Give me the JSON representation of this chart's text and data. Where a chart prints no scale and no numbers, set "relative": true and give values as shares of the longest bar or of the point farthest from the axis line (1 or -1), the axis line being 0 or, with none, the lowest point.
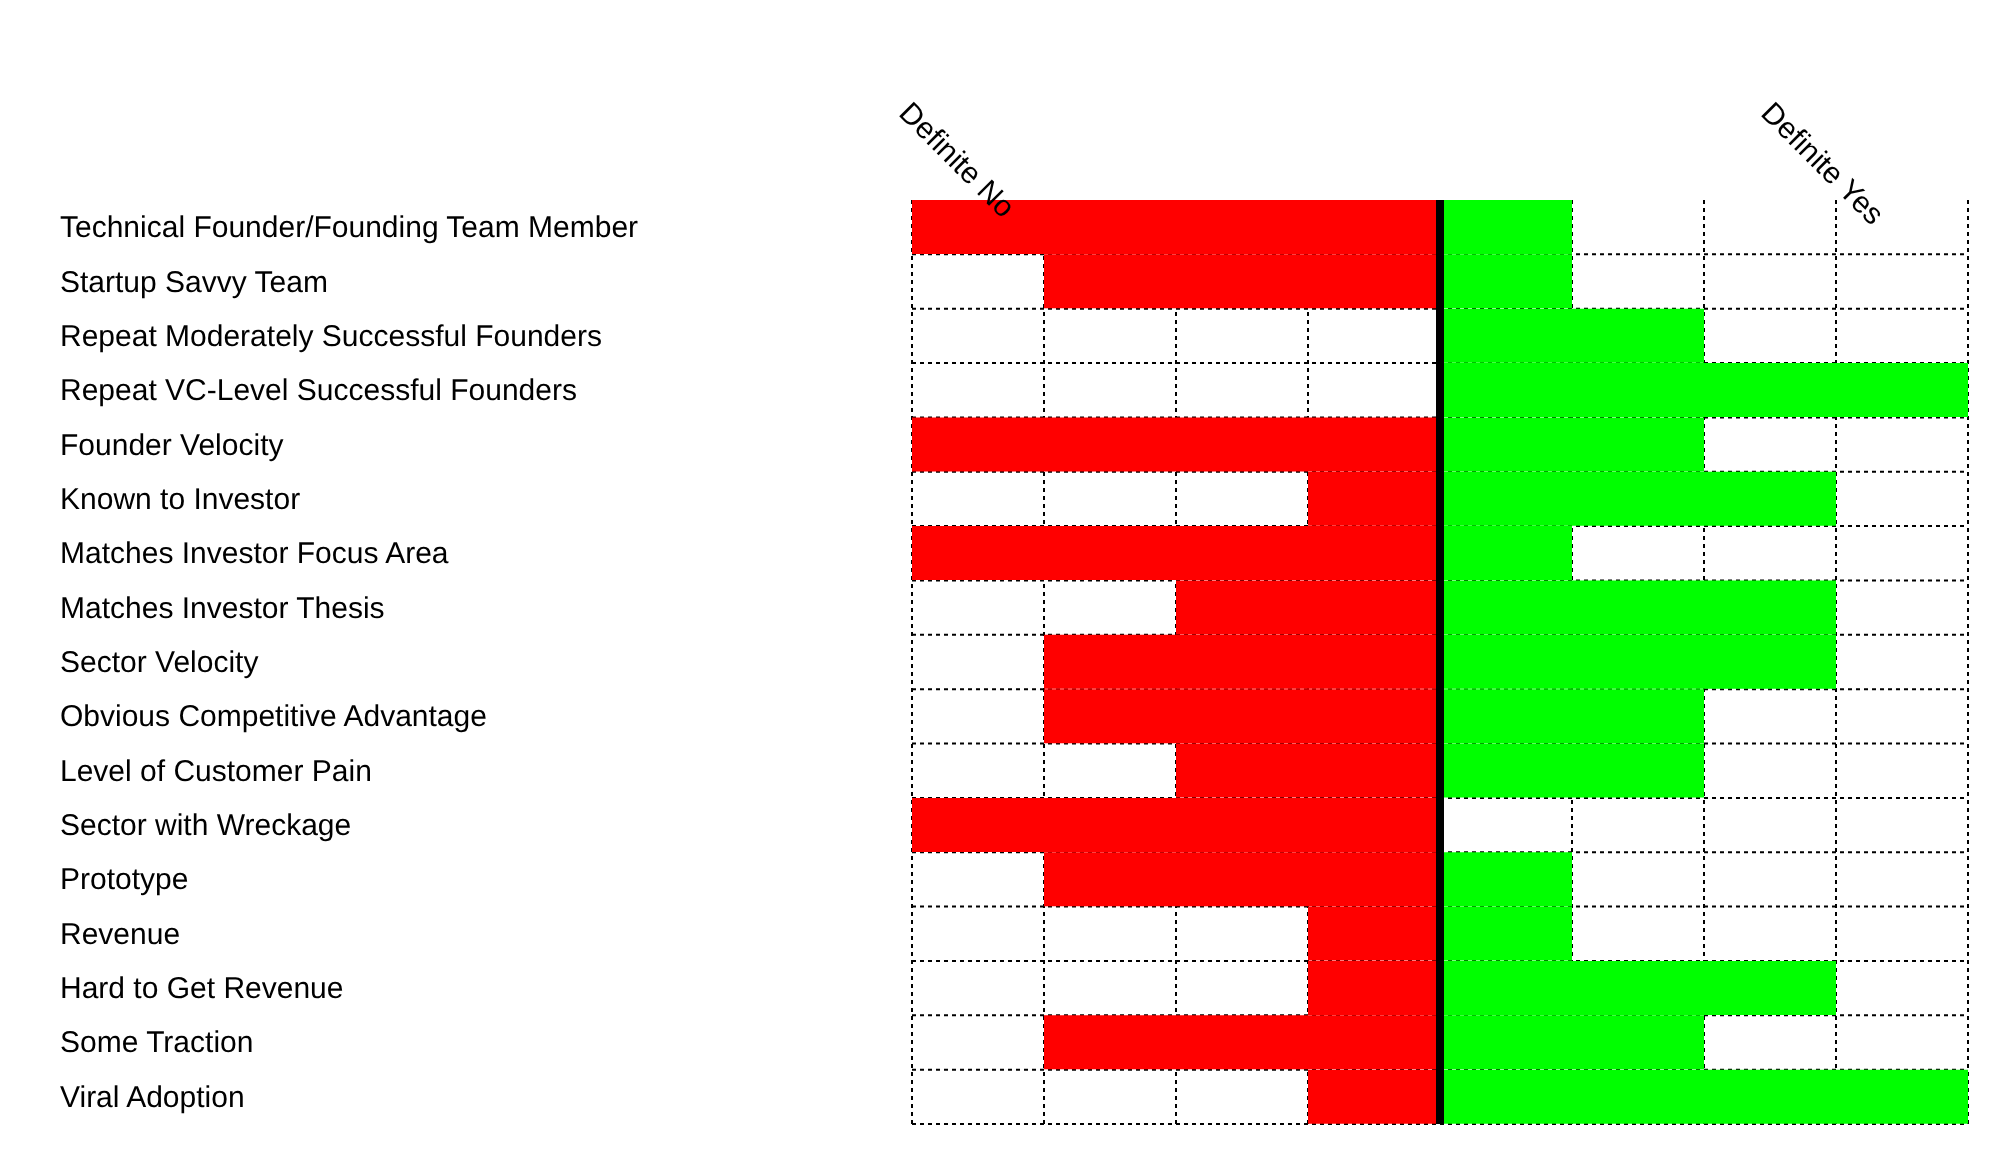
{
  "chart_data": {
    "type": "bar",
    "orientation": "horizontal",
    "stacked": true,
    "relative": true,
    "grid": true,
    "categories": [
      "Technical Founder/Founding Team Member",
      "Startup Savvy Team",
      "Repeat Moderately Successful Founders",
      "Repeat VC-Level Successful Founders",
      "Founder Velocity",
      "Known to Investor",
      "Matches Investor Focus Area",
      "Matches Investor Thesis",
      "Sector Velocity",
      "Obvious Competitive Advantage",
      "Level of Customer Pain",
      "Sector with Wreckage",
      "Prototype",
      "Revenue",
      "Hard to Get Revenue",
      "Some Traction",
      "Viral Adoption"
    ],
    "series": [
      {
        "color": "#ff0000",
        "values": [
          -1,
          -0.75,
          0,
          0,
          -1,
          -0.25,
          -1,
          -0.5,
          -0.75,
          -0.75,
          -0.5,
          -1,
          -0.75,
          -0.25,
          -0.25,
          -0.75,
          -0.25
        ]
      },
      {
        "color": "#00ff00",
        "values": [
          0.25,
          0.25,
          0.5,
          1,
          0.5,
          0.75,
          0.25,
          0.75,
          0.75,
          0.5,
          0.5,
          0,
          0.25,
          0.25,
          0.75,
          0.5,
          1
        ]
      }
    ],
    "annotations": [
      "Definite No",
      "Definite Yes"
    ]
  }
}
